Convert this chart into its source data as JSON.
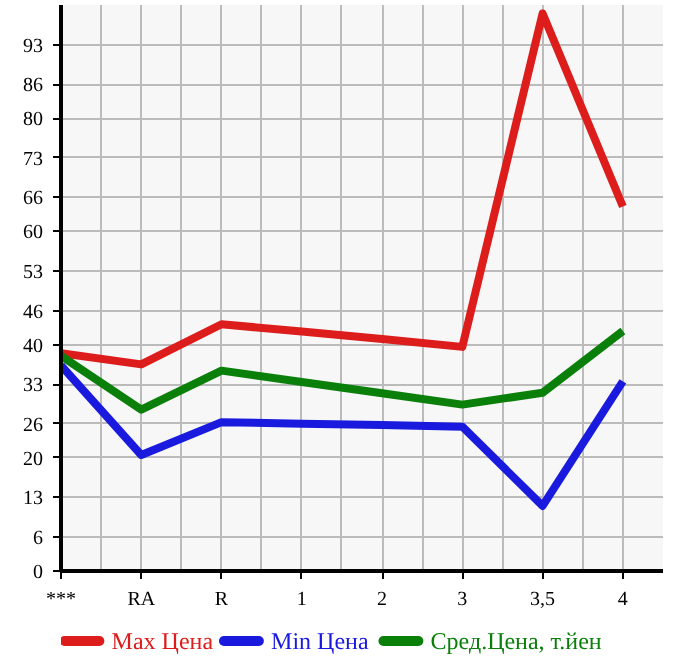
{
  "chart_data": {
    "type": "line",
    "categories": [
      "***",
      "RA",
      "R",
      "1",
      "2",
      "3",
      "3,5",
      "4"
    ],
    "ylim": [
      0,
      100
    ],
    "yticks": [
      0,
      6,
      13,
      20,
      26,
      33,
      40,
      46,
      53,
      60,
      66,
      73,
      80,
      86,
      93
    ],
    "grid": true,
    "legend": "bottom",
    "marker": "none",
    "line_style": "solid",
    "series": [
      {
        "name": "Max Цена",
        "color": "#dd1c1c",
        "values": [
          38.5,
          36.5,
          43.6,
          42.3,
          41.0,
          39.6,
          98.5,
          64.4
        ]
      },
      {
        "name": "Min Цена",
        "color": "#1a1adf",
        "values": [
          36.3,
          20.5,
          26.3,
          26.0,
          25.8,
          25.5,
          11.5,
          33.5
        ]
      },
      {
        "name": "Сред.Цена, т.йен",
        "color": "#0a7f0a",
        "values": [
          38.0,
          28.5,
          35.4,
          33.4,
          31.4,
          29.4,
          31.5,
          42.4
        ]
      }
    ]
  }
}
